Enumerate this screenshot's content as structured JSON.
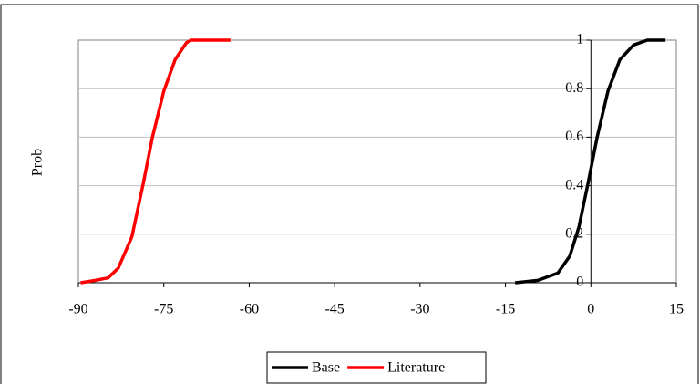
{
  "chart_data": {
    "type": "line",
    "y_label": "Prob",
    "xlim": [
      -90,
      15
    ],
    "xticks": [
      -90,
      -75,
      -60,
      -45,
      -30,
      -15,
      0,
      15
    ],
    "ylim": [
      0,
      1
    ],
    "yticks": [
      0,
      0.2,
      0.4,
      0.6,
      0.8,
      1
    ],
    "y_axis_crossing": 0,
    "grid": true,
    "legend": "bottom",
    "series": [
      {
        "name": "Base",
        "color": "#000000",
        "x": [
          -13.3,
          -9.3,
          -5.8,
          -3.7,
          -2.1,
          -0.5,
          1.1,
          3.0,
          5.1,
          7.5,
          9.9,
          13.1
        ],
        "values": [
          0,
          0.01,
          0.04,
          0.11,
          0.23,
          0.41,
          0.6,
          0.79,
          0.92,
          0.98,
          1,
          1
        ]
      },
      {
        "name": "Literature",
        "color": "#ff0000",
        "x": [
          -89.6,
          -87,
          -84.8,
          -83,
          -80.6,
          -78.6,
          -77,
          -75,
          -73,
          -71,
          -70.2,
          -63.3
        ],
        "values": [
          0,
          0.01,
          0.02,
          0.06,
          0.19,
          0.41,
          0.6,
          0.79,
          0.92,
          0.99,
          1,
          1
        ]
      }
    ]
  }
}
